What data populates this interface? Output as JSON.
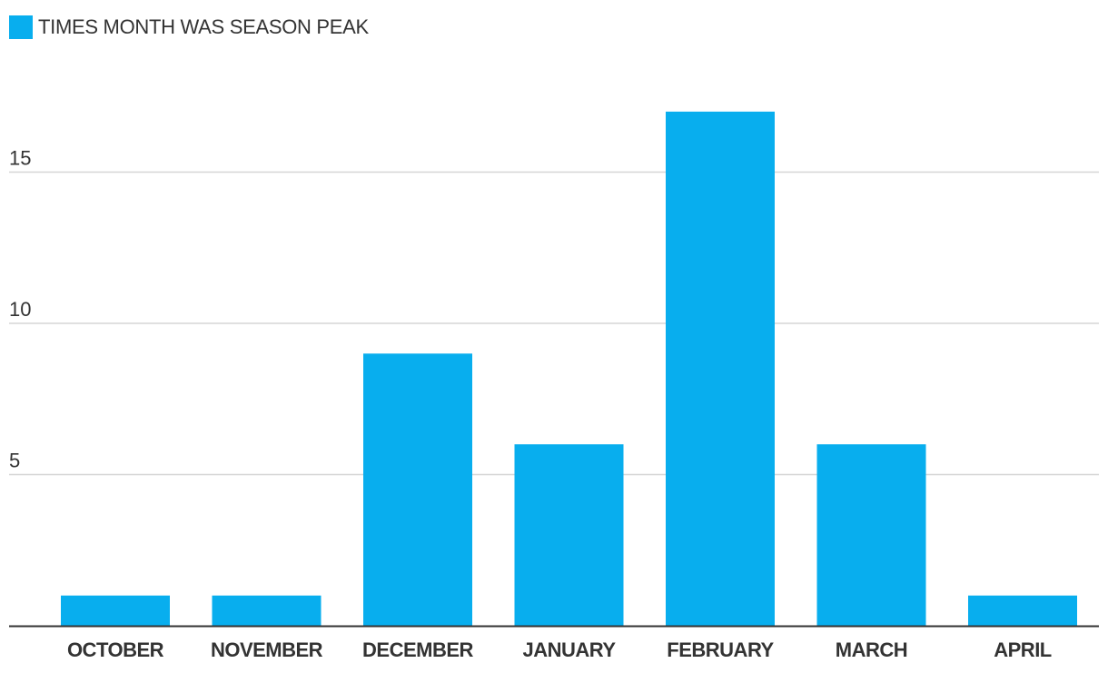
{
  "chart_data": {
    "type": "bar",
    "categories": [
      "OCTOBER",
      "NOVEMBER",
      "DECEMBER",
      "JANUARY",
      "FEBRUARY",
      "MARCH",
      "APRIL"
    ],
    "series": [
      {
        "name": "TIMES MONTH WAS SEASON PEAK",
        "values": [
          1,
          1,
          9,
          6,
          17,
          6,
          1
        ]
      }
    ],
    "yticks": [
      "5",
      "10",
      "15"
    ],
    "ylim": [
      0,
      18
    ],
    "grid": true,
    "legend_position": "top-left",
    "bar_color": "#08aeee"
  }
}
